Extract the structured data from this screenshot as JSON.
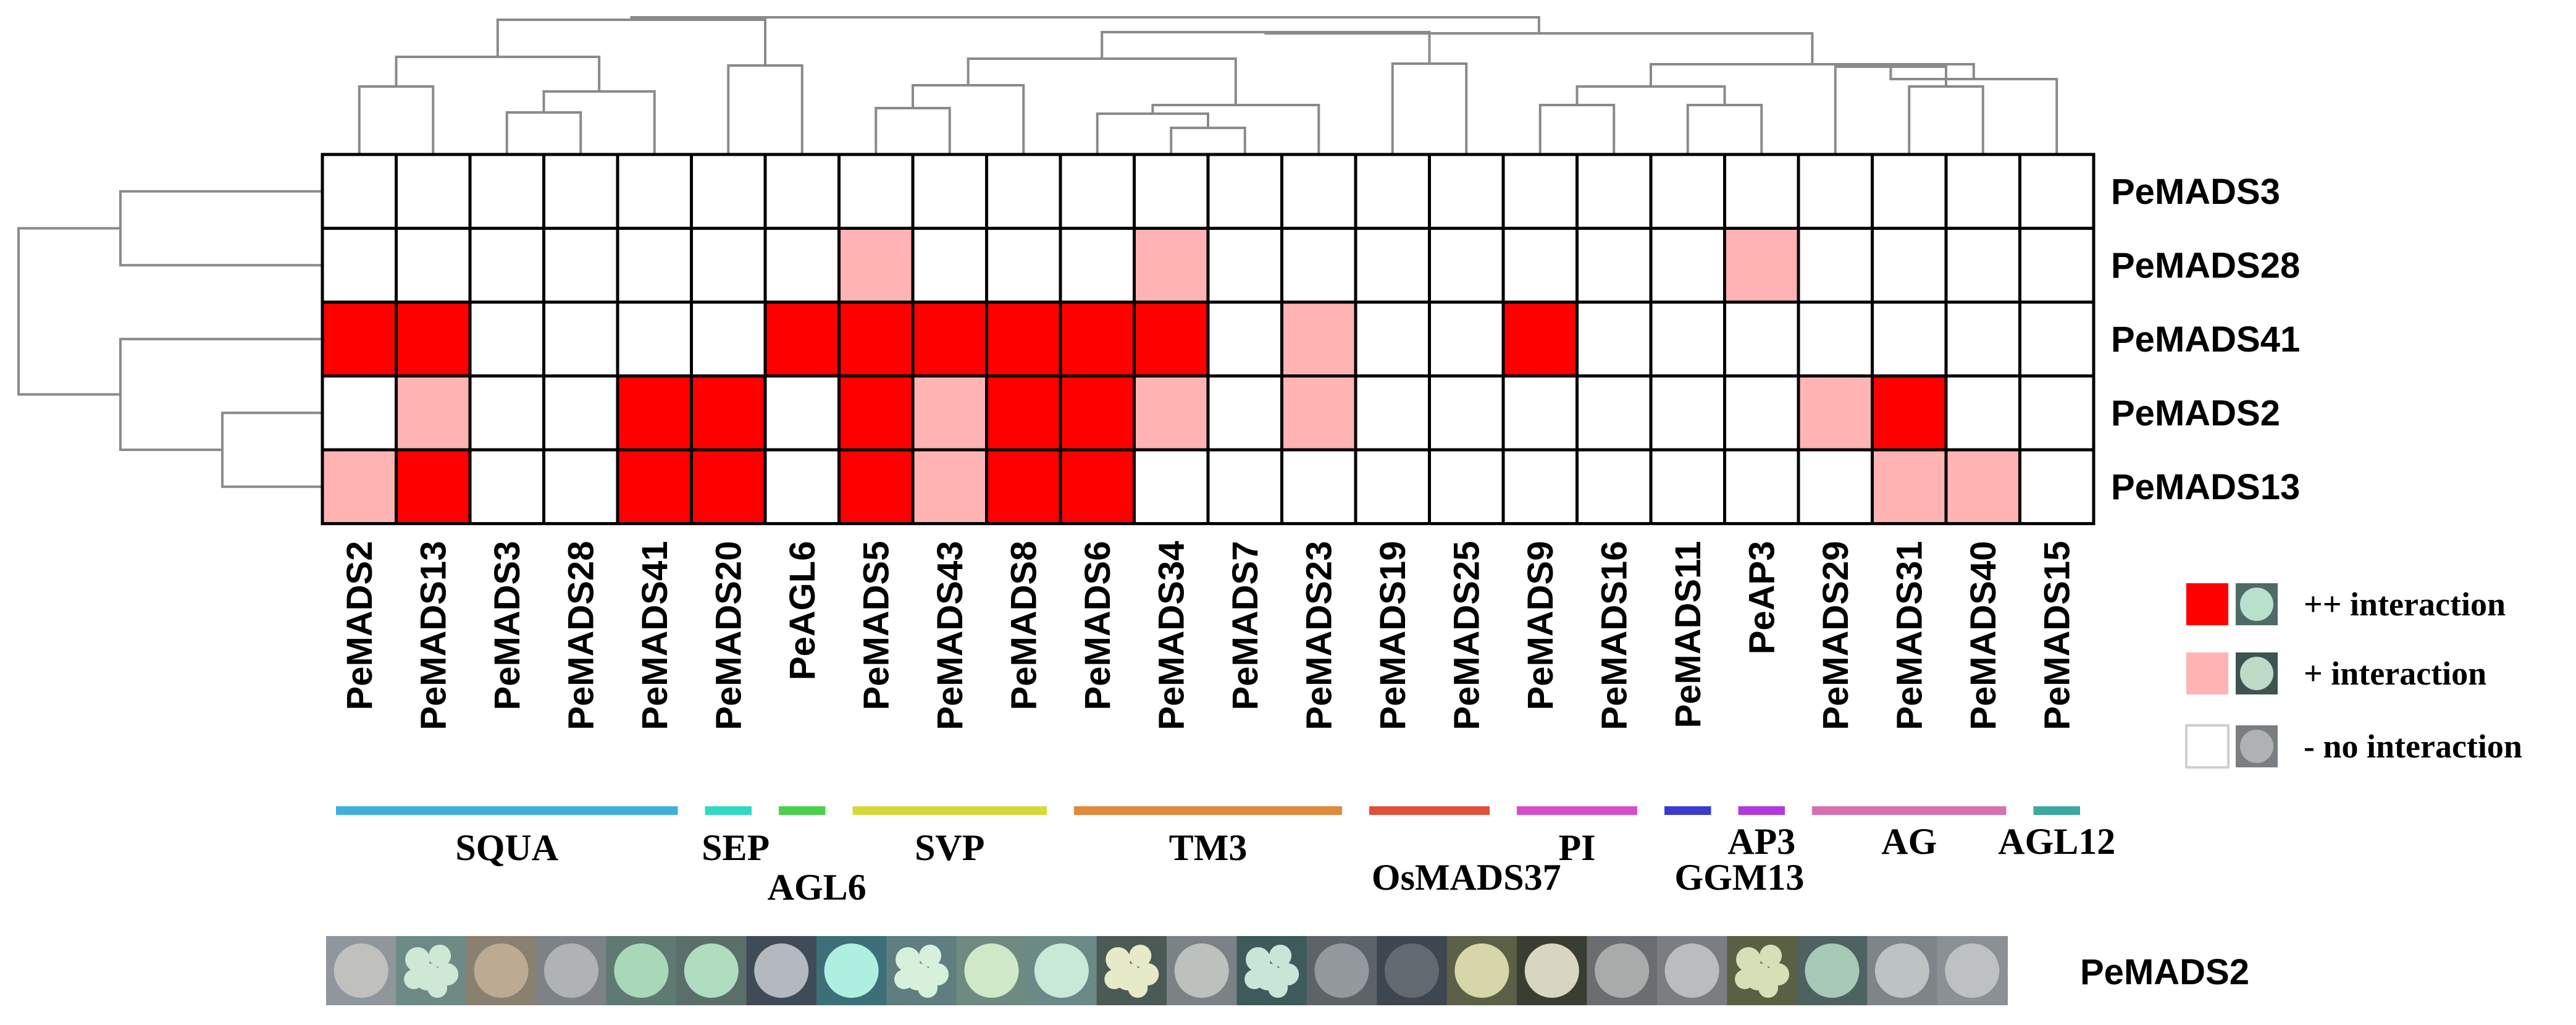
{
  "chart_data": {
    "type": "heatmap",
    "title": "",
    "columns": [
      "PeMADS2",
      "PeMADS13",
      "PeMADS3",
      "PeMADS28",
      "PeMADS41",
      "PeMADS20",
      "PeAGL6",
      "PeMADS5",
      "PeMADS43",
      "PeMADS8",
      "PeMADS6",
      "PeMADS34",
      "PeMADS7",
      "PeMADS23",
      "PeMADS19",
      "PeMADS25",
      "PeMADS9",
      "PeMADS16",
      "PeMADS11",
      "PeAP3",
      "PeMADS29",
      "PeMADS31",
      "PeMADS40",
      "PeMADS15"
    ],
    "rows": [
      "PeMADS3",
      "PeMADS28",
      "PeMADS41",
      "PeMADS2",
      "PeMADS13"
    ],
    "values": [
      [
        0,
        0,
        0,
        0,
        0,
        0,
        0,
        0,
        0,
        0,
        0,
        0,
        0,
        0,
        0,
        0,
        0,
        0,
        0,
        0,
        0,
        0,
        0,
        0
      ],
      [
        0,
        0,
        0,
        0,
        0,
        0,
        0,
        1,
        0,
        0,
        0,
        1,
        0,
        0,
        0,
        0,
        0,
        0,
        0,
        1,
        0,
        0,
        0,
        0
      ],
      [
        2,
        2,
        0,
        0,
        0,
        0,
        2,
        2,
        2,
        2,
        2,
        2,
        0,
        1,
        0,
        0,
        2,
        0,
        0,
        0,
        0,
        0,
        0,
        0
      ],
      [
        0,
        1,
        0,
        0,
        2,
        2,
        0,
        2,
        1,
        2,
        2,
        1,
        0,
        1,
        0,
        0,
        0,
        0,
        0,
        0,
        1,
        2,
        0,
        0
      ],
      [
        1,
        2,
        0,
        0,
        2,
        2,
        0,
        2,
        1,
        2,
        2,
        0,
        0,
        0,
        0,
        0,
        0,
        0,
        0,
        0,
        0,
        1,
        1,
        0
      ]
    ],
    "scale": {
      "0": "no interaction",
      "1": "+ interaction",
      "2": "++ interaction"
    },
    "colors": {
      "0": "#ffffff",
      "1": "#ffb3b3",
      "2": "#ff0000"
    },
    "groups": [
      {
        "name": "SQUA",
        "start": 0,
        "end": 4,
        "color": "#3fb0dc"
      },
      {
        "name": "SEP",
        "start": 5,
        "end": 5,
        "color": "#2fd9c4"
      },
      {
        "name": "AGL6",
        "start": 6,
        "end": 6,
        "color": "#4ad04a"
      },
      {
        "name": "SVP",
        "start": 7,
        "end": 9,
        "color": "#d9d83a"
      },
      {
        "name": "TM3",
        "start": 10,
        "end": 13,
        "color": "#e08a3a"
      },
      {
        "name": "OsMADS37",
        "start": 14,
        "end": 15,
        "color": "#e0503a"
      },
      {
        "name": "PI",
        "start": 16,
        "end": 17,
        "color": "#d64fc8"
      },
      {
        "name": "GGM13",
        "start": 18,
        "end": 18,
        "color": "#3a3ad0"
      },
      {
        "name": "AP3",
        "start": 19,
        "end": 19,
        "color": "#b03ae0"
      },
      {
        "name": "AG",
        "start": 20,
        "end": 22,
        "color": "#d870b0"
      },
      {
        "name": "AGL12",
        "start": 23,
        "end": 23,
        "color": "#3aa8a0"
      }
    ],
    "legend": [
      {
        "label": "++ interaction",
        "level": 2
      },
      {
        "label": "+ interaction",
        "level": 1
      },
      {
        "label": "- no interaction",
        "level": 0
      }
    ],
    "yeast_assay": {
      "label": "PeMADS2",
      "colonies": [
        {
          "bg": "#8f969c",
          "spot": "#c9c9c2",
          "growth": 0
        },
        {
          "bg": "#6e8a86",
          "spot": "#cfe8d6",
          "growth": 2
        },
        {
          "bg": "#8a8070",
          "spot": "#c4b298",
          "growth": 0
        },
        {
          "bg": "#7c8286",
          "spot": "#b8bcbc",
          "growth": 0
        },
        {
          "bg": "#5f7a72",
          "spot": "#a8d8b8",
          "growth": 1
        },
        {
          "bg": "#5a6e6a",
          "spot": "#b0dcc0",
          "growth": 1
        },
        {
          "bg": "#3f4c58",
          "spot": "#c8ccd0",
          "growth": 0
        },
        {
          "bg": "#3d6f78",
          "spot": "#aef0e0",
          "growth": 1
        },
        {
          "bg": "#5e7e80",
          "spot": "#d6f0dc",
          "growth": 2
        },
        {
          "bg": "#6f8a80",
          "spot": "#cfe8c8",
          "growth": 1
        },
        {
          "bg": "#6a8a88",
          "spot": "#c8e8d8",
          "growth": 1
        },
        {
          "bg": "#4c5a56",
          "spot": "#e6eac8",
          "growth": 2
        },
        {
          "bg": "#7a8286",
          "spot": "#c8ccc8",
          "growth": 0
        },
        {
          "bg": "#3e5a5a",
          "spot": "#c8e6d8",
          "growth": 2
        },
        {
          "bg": "#5c646a",
          "spot": "#9ea2a6",
          "growth": 0
        },
        {
          "bg": "#3e4650",
          "spot": "#6a7076",
          "growth": 0
        },
        {
          "bg": "#5c6046",
          "spot": "#d6d6a8",
          "growth": 1
        },
        {
          "bg": "#3a3e32",
          "spot": "#d8d6c0",
          "growth": 1
        },
        {
          "bg": "#6a6e70",
          "spot": "#b4b6b4",
          "growth": 0
        },
        {
          "bg": "#7a7e82",
          "spot": "#c4c8c8",
          "growth": 0
        },
        {
          "bg": "#5a6044",
          "spot": "#d6e0b8",
          "growth": 2
        },
        {
          "bg": "#4e6262",
          "spot": "#a8c8b8",
          "growth": 1
        },
        {
          "bg": "#7e8488",
          "spot": "#c8cccc",
          "growth": 0
        },
        {
          "bg": "#8a9094",
          "spot": "#c6caca",
          "growth": 0
        }
      ]
    }
  }
}
